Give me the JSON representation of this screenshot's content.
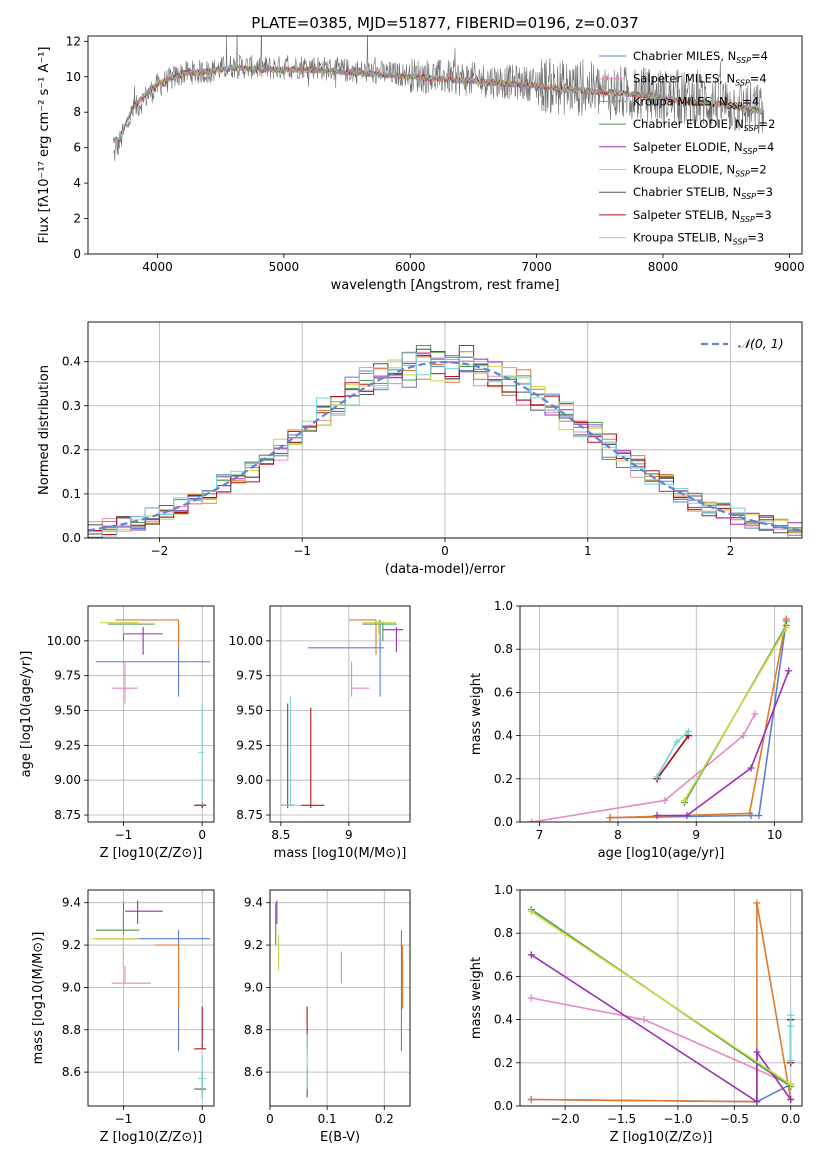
{
  "figure": {
    "title": "PLATE=0385, MJD=51877, FIBERID=0196, z=0.037",
    "model_colors": [
      "#5b7fd6",
      "#e58ac4",
      "#e07b2c",
      "#4f9a4f",
      "#9b2fb5",
      "#c8d84a",
      "#555555",
      "#b3141c",
      "#79d2dc"
    ]
  },
  "chart_data": [
    {
      "id": "spectrum",
      "type": "line",
      "title": "PLATE=0385, MJD=51877, FIBERID=0196, z=0.037",
      "xlabel": "wavelength [Angstrom, rest frame]",
      "ylabel": "Flux [fλ10⁻¹⁷ erg cm⁻² s⁻¹ A⁻¹]",
      "xlim": [
        3450,
        9100
      ],
      "ylim": [
        0,
        12.3
      ],
      "xticks": [
        4000,
        5000,
        6000,
        7000,
        8000,
        9000
      ],
      "yticks": [
        0,
        2,
        4,
        6,
        8,
        10,
        12
      ],
      "legend_position": "top-right",
      "legend": [
        "Chabrier MILES, N_SSP=4",
        "Salpeter MILES, N_SSP=4",
        "Kroupa MILES, N_SSP=4",
        "Chabrier ELODIE, N_SSP=2",
        "Salpeter ELODIE, N_SSP=4",
        "Kroupa ELODIE, N_SSP=2",
        "Chabrier STELIB, N_SSP=3",
        "Salpeter STELIB, N_SSP=3",
        "Kroupa STELIB, N_SSP=3"
      ],
      "data_series": {
        "name": "data",
        "x": [
          3650,
          3700,
          3800,
          3900,
          4000,
          4200,
          4400,
          4600,
          4800,
          5000,
          5200,
          5400,
          5600,
          5800,
          6000,
          6200,
          6400,
          6600,
          6800,
          7000,
          7200,
          7400,
          7600,
          7800,
          8000,
          8200,
          8400,
          8600,
          8800
        ],
        "y": [
          5.5,
          6.3,
          8.0,
          8.8,
          9.5,
          10.2,
          10.3,
          10.6,
          10.5,
          10.5,
          10.6,
          10.4,
          10.3,
          10.2,
          10.1,
          10.0,
          9.9,
          9.8,
          9.7,
          9.6,
          9.4,
          9.3,
          9.1,
          9.0,
          8.9,
          8.7,
          8.6,
          8.3,
          8.0
        ]
      },
      "model_line": {
        "x": [
          3650,
          3700,
          3800,
          3900,
          4000,
          4200,
          4400,
          4600,
          4800,
          5000,
          5200,
          5400,
          5600,
          5800,
          6000,
          6200,
          6400,
          6600,
          6800,
          7000,
          7200,
          7400,
          7600,
          7800,
          8000,
          8200,
          8400,
          8600,
          8800
        ],
        "y": [
          6.4,
          6.5,
          8.2,
          9.0,
          9.6,
          10.2,
          10.3,
          10.5,
          10.4,
          10.4,
          10.4,
          10.3,
          10.2,
          10.1,
          10.0,
          9.9,
          9.8,
          9.7,
          9.6,
          9.5,
          9.3,
          9.2,
          9.1,
          9.0,
          8.8,
          8.6,
          8.5,
          8.3,
          8.0
        ]
      }
    },
    {
      "id": "residuals",
      "type": "histogram",
      "xlabel": "(data-model)/error",
      "ylabel": "Normed distribution",
      "xlim": [
        -2.5,
        2.5
      ],
      "ylim": [
        0,
        0.49
      ],
      "xticks": [
        -2,
        -1,
        0,
        1,
        2
      ],
      "yticks": [
        0.0,
        0.1,
        0.2,
        0.3,
        0.4
      ],
      "legend_position": "top-right",
      "legend": [
        "𝒩(0, 1)"
      ],
      "bin_width": 0.1,
      "gaussian": {
        "mean": 0,
        "sigma": 1
      }
    },
    {
      "id": "age_Z",
      "type": "errorbar",
      "xlabel": "Z [log10(Z/Z⊙)]",
      "ylabel": "age  [log10(age/yr)]",
      "xlim": [
        -1.45,
        0.15
      ],
      "ylim": [
        8.7,
        10.25
      ],
      "xticks": [
        -1,
        0
      ],
      "yticks": [
        8.75,
        9.0,
        9.25,
        9.5,
        9.75,
        10.0
      ],
      "points": [
        {
          "m": 0,
          "x": -0.3,
          "y": 9.85,
          "xl": -1.35,
          "xh": 0.1,
          "yl": 9.6,
          "yh": 10.15
        },
        {
          "m": 1,
          "x": -0.98,
          "y": 9.66,
          "xl": -1.15,
          "xh": -0.82,
          "yl": 9.55,
          "yh": 9.85
        },
        {
          "m": 2,
          "x": -0.3,
          "y": 10.15,
          "xl": -1.1,
          "xh": -0.3,
          "yl": 9.95,
          "yh": 10.15
        },
        {
          "m": 3,
          "x": -1.0,
          "y": 10.12,
          "xl": -1.2,
          "xh": -0.6,
          "yl": 10.0,
          "yh": 10.14
        },
        {
          "m": 4,
          "x": -0.75,
          "y": 10.05,
          "xl": -1.0,
          "xh": -0.5,
          "yl": 9.9,
          "yh": 10.1
        },
        {
          "m": 5,
          "x": -1.0,
          "y": 10.13,
          "xl": -1.3,
          "xh": -0.8,
          "yl": 10.05,
          "yh": 10.15
        },
        {
          "m": 6,
          "x": 0.0,
          "y": 8.82,
          "xl": -0.1,
          "xh": 0.05,
          "yl": 8.8,
          "yh": 8.84
        },
        {
          "m": 7,
          "x": 0.0,
          "y": 8.82,
          "xl": -0.1,
          "xh": 0.05,
          "yl": 8.8,
          "yh": 8.84
        },
        {
          "m": 8,
          "x": 0.0,
          "y": 9.2,
          "xl": -0.05,
          "xh": 0.02,
          "yl": 8.82,
          "yh": 9.55
        }
      ]
    },
    {
      "id": "age_mass",
      "type": "errorbar",
      "xlabel": "mass [log10(M/M⊙)]",
      "ylabel": "",
      "xlim": [
        8.42,
        9.45
      ],
      "ylim": [
        8.7,
        10.25
      ],
      "xticks": [
        8.5,
        9.0
      ],
      "yticks": [
        8.75,
        9.0,
        9.25,
        9.5,
        9.75,
        10.0
      ],
      "points": [
        {
          "m": 0,
          "x": 9.23,
          "y": 9.95,
          "xl": 8.7,
          "xh": 9.26,
          "yl": 9.6,
          "yh": 10.15
        },
        {
          "m": 1,
          "x": 9.02,
          "y": 9.66,
          "xl": 9.02,
          "xh": 9.15,
          "yl": 9.6,
          "yh": 9.85
        },
        {
          "m": 2,
          "x": 9.2,
          "y": 10.15,
          "xl": 9.0,
          "xh": 9.2,
          "yl": 9.9,
          "yh": 10.15
        },
        {
          "m": 3,
          "x": 9.25,
          "y": 10.12,
          "xl": 9.1,
          "xh": 9.35,
          "yl": 10.0,
          "yh": 10.14
        },
        {
          "m": 4,
          "x": 9.35,
          "y": 10.08,
          "xl": 9.25,
          "xh": 9.4,
          "yl": 9.92,
          "yh": 10.1
        },
        {
          "m": 5,
          "x": 9.22,
          "y": 10.13,
          "xl": 9.1,
          "xh": 9.35,
          "yl": 10.05,
          "yh": 10.15
        },
        {
          "m": 6,
          "x": 8.55,
          "y": 8.82,
          "xl": 8.5,
          "xh": 8.6,
          "yl": 8.8,
          "yh": 9.55
        },
        {
          "m": 7,
          "x": 8.72,
          "y": 8.82,
          "xl": 8.65,
          "xh": 8.82,
          "yl": 8.8,
          "yh": 9.52
        },
        {
          "m": 8,
          "x": 8.57,
          "y": 8.82,
          "xl": 8.5,
          "xh": 8.65,
          "yl": 8.82,
          "yh": 9.6
        }
      ]
    },
    {
      "id": "weight_age",
      "type": "line",
      "xlabel": "age  [log10(age/yr)]",
      "ylabel": "mass weight",
      "xlim": [
        6.75,
        10.35
      ],
      "ylim": [
        0,
        1.0
      ],
      "xticks": [
        7,
        8,
        9,
        10
      ],
      "yticks": [
        0.0,
        0.2,
        0.4,
        0.6,
        0.8,
        1.0
      ],
      "series": [
        {
          "m": 0,
          "x": [
            7.9,
            9.7,
            9.8,
            10.15
          ],
          "y": [
            0.02,
            0.03,
            0.03,
            0.93
          ]
        },
        {
          "m": 1,
          "x": [
            6.9,
            8.6,
            9.6,
            9.75
          ],
          "y": [
            0.0,
            0.1,
            0.4,
            0.5
          ]
        },
        {
          "m": 2,
          "x": [
            7.9,
            9.68,
            10.15
          ],
          "y": [
            0.02,
            0.04,
            0.94
          ]
        },
        {
          "m": 3,
          "x": [
            8.85,
            10.15
          ],
          "y": [
            0.09,
            0.91
          ]
        },
        {
          "m": 4,
          "x": [
            8.5,
            8.88,
            9.7,
            10.18
          ],
          "y": [
            0.03,
            0.03,
            0.25,
            0.7
          ]
        },
        {
          "m": 5,
          "x": [
            8.85,
            10.15
          ],
          "y": [
            0.1,
            0.9
          ]
        },
        {
          "m": 6,
          "x": [
            8.5,
            8.9
          ],
          "y": [
            0.2,
            0.4
          ]
        },
        {
          "m": 7,
          "x": [
            8.5,
            8.9
          ],
          "y": [
            0.2,
            0.4
          ]
        },
        {
          "m": 8,
          "x": [
            8.5,
            8.75,
            8.9
          ],
          "y": [
            0.21,
            0.37,
            0.42
          ]
        }
      ]
    },
    {
      "id": "mass_Z",
      "type": "errorbar",
      "xlabel": "Z [log10(Z/Z⊙)]",
      "ylabel": "mass [log10(M/M⊙)]",
      "xlim": [
        -1.45,
        0.15
      ],
      "ylim": [
        8.44,
        9.46
      ],
      "xticks": [
        -1,
        0
      ],
      "yticks": [
        8.6,
        8.8,
        9.0,
        9.2,
        9.4
      ],
      "points": [
        {
          "m": 0,
          "x": -0.3,
          "y": 9.23,
          "xl": -1.35,
          "xh": 0.1,
          "yl": 8.7,
          "yh": 9.27
        },
        {
          "m": 1,
          "x": -0.98,
          "y": 9.02,
          "xl": -1.15,
          "xh": -0.65,
          "yl": 9.02,
          "yh": 9.1
        },
        {
          "m": 2,
          "x": -0.3,
          "y": 9.2,
          "xl": -0.6,
          "xh": -0.3,
          "yl": 8.9,
          "yh": 9.2
        },
        {
          "m": 3,
          "x": -1.0,
          "y": 9.27,
          "xl": -1.35,
          "xh": -0.8,
          "yl": 9.1,
          "yh": 9.4
        },
        {
          "m": 4,
          "x": -0.82,
          "y": 9.36,
          "xl": -0.98,
          "xh": -0.5,
          "yl": 9.3,
          "yh": 9.41
        },
        {
          "m": 5,
          "x": -1.0,
          "y": 9.23,
          "xl": -1.4,
          "xh": -0.8,
          "yl": 9.1,
          "yh": 9.25
        },
        {
          "m": 6,
          "x": 0.0,
          "y": 8.52,
          "xl": -0.1,
          "xh": 0.05,
          "yl": 8.48,
          "yh": 8.6
        },
        {
          "m": 7,
          "x": 0.0,
          "y": 8.71,
          "xl": -0.1,
          "xh": 0.05,
          "yl": 8.71,
          "yh": 8.91
        },
        {
          "m": 8,
          "x": 0.0,
          "y": 8.57,
          "xl": -0.05,
          "xh": 0.05,
          "yl": 8.48,
          "yh": 8.68
        }
      ]
    },
    {
      "id": "mass_ebv",
      "type": "errorbar",
      "xlabel": "E(B-V)",
      "ylabel": "",
      "xlim": [
        -0.0,
        0.245
      ],
      "ylim": [
        8.44,
        9.46
      ],
      "xticks": [
        0.0,
        0.1,
        0.2
      ],
      "yticks": [
        8.6,
        8.8,
        9.0,
        9.2,
        9.4
      ],
      "points": [
        {
          "m": 0,
          "x": 0.23,
          "y": 9.0,
          "xl": 0.23,
          "xh": 0.23,
          "yl": 8.7,
          "yh": 9.27
        },
        {
          "m": 1,
          "x": 0.125,
          "y": 9.08,
          "xl": 0.125,
          "xh": 0.125,
          "yl": 9.02,
          "yh": 9.17
        },
        {
          "m": 2,
          "x": 0.232,
          "y": 9.05,
          "xl": 0.232,
          "xh": 0.232,
          "yl": 8.9,
          "yh": 9.2
        },
        {
          "m": 3,
          "x": 0.01,
          "y": 9.3,
          "xl": 0.01,
          "xh": 0.01,
          "yl": 9.2,
          "yh": 9.4
        },
        {
          "m": 4,
          "x": 0.012,
          "y": 9.35,
          "xl": 0.012,
          "xh": 0.012,
          "yl": 9.3,
          "yh": 9.41
        },
        {
          "m": 5,
          "x": 0.015,
          "y": 9.15,
          "xl": 0.015,
          "xh": 0.015,
          "yl": 9.08,
          "yh": 9.25
        },
        {
          "m": 6,
          "x": 0.065,
          "y": 8.55,
          "xl": 0.065,
          "xh": 0.065,
          "yl": 8.48,
          "yh": 8.62
        },
        {
          "m": 7,
          "x": 0.065,
          "y": 8.8,
          "xl": 0.065,
          "xh": 0.065,
          "yl": 8.71,
          "yh": 8.91
        },
        {
          "m": 8,
          "x": 0.065,
          "y": 8.65,
          "xl": 0.065,
          "xh": 0.065,
          "yl": 8.52,
          "yh": 8.78
        }
      ]
    },
    {
      "id": "weight_Z",
      "type": "line",
      "xlabel": "Z [log10(Z/Z⊙)]",
      "ylabel": "mass weight",
      "xlim": [
        -2.4,
        0.1
      ],
      "ylim": [
        0,
        1.0
      ],
      "xticks": [
        -2.0,
        -1.5,
        -1.0,
        -0.5,
        0.0
      ],
      "yticks": [
        0.0,
        0.2,
        0.4,
        0.6,
        0.8,
        1.0
      ],
      "series": [
        {
          "m": 0,
          "x": [
            -2.3,
            -0.3,
            0.0
          ],
          "y": [
            0.03,
            0.02,
            0.1
          ]
        },
        {
          "m": 1,
          "x": [
            -2.3,
            -1.3,
            0.0
          ],
          "y": [
            0.5,
            0.4,
            0.1
          ]
        },
        {
          "m": 2,
          "x": [
            -2.3,
            -0.3,
            -0.3,
            0.0
          ],
          "y": [
            0.03,
            0.02,
            0.94,
            0.03
          ]
        },
        {
          "m": 3,
          "x": [
            -2.3,
            0.0
          ],
          "y": [
            0.91,
            0.09
          ]
        },
        {
          "m": 4,
          "x": [
            -2.3,
            -0.3,
            -0.3,
            0.0
          ],
          "y": [
            0.7,
            0.02,
            0.25,
            0.03
          ]
        },
        {
          "m": 5,
          "x": [
            -2.3,
            0.0
          ],
          "y": [
            0.9,
            0.1
          ]
        },
        {
          "m": 6,
          "x": [
            0.0,
            0.0
          ],
          "y": [
            0.2,
            0.4
          ]
        },
        {
          "m": 7,
          "x": [
            0.0,
            0.0
          ],
          "y": [
            0.2,
            0.4
          ]
        },
        {
          "m": 8,
          "x": [
            0.0,
            0.0,
            0.0
          ],
          "y": [
            0.21,
            0.37,
            0.42
          ]
        }
      ]
    }
  ]
}
